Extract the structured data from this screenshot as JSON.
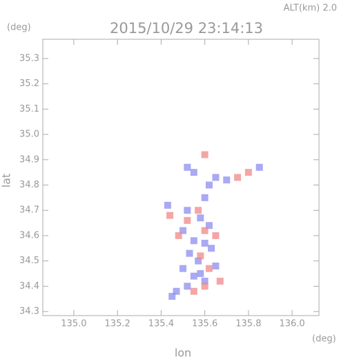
{
  "chart_data": {
    "type": "scatter",
    "title": "2015/10/29 23:14:13",
    "subtitle": "ALT(km) 2.0",
    "y_unit": "(deg)",
    "x_unit": "(deg)",
    "x_label": "lon",
    "y_label": "lat",
    "xlim": [
      134.858,
      136.123
    ],
    "ylim": [
      34.284,
      35.376
    ],
    "xticks": [
      {
        "value": 135,
        "label": "135.0"
      },
      135.2,
      135.4,
      135.6,
      135.8,
      {
        "value": 136,
        "label": "136.0"
      }
    ],
    "yticks": [
      34.3,
      34.4,
      34.5,
      34.6,
      34.7,
      34.8,
      34.9,
      {
        "value": 35,
        "label": "35.0"
      },
      35.1,
      35.2,
      35.3
    ],
    "series": [
      {
        "color": "#8c8cf0",
        "x": [
          135.52,
          135.55,
          135.62,
          135.65,
          135.6,
          135.52,
          135.58,
          135.62,
          135.5,
          135.55,
          135.6,
          135.53,
          135.57,
          135.65,
          135.5,
          135.55,
          135.6,
          135.52,
          135.47,
          135.45,
          135.58,
          135.63,
          135.85,
          135.43,
          135.7
        ],
        "y": [
          34.87,
          34.85,
          34.8,
          34.83,
          34.75,
          34.7,
          34.67,
          34.64,
          34.62,
          34.58,
          34.57,
          34.53,
          34.5,
          34.48,
          34.47,
          34.44,
          34.42,
          34.4,
          34.38,
          34.36,
          34.45,
          34.55,
          34.87,
          34.72,
          34.82
        ]
      },
      {
        "color": "#f08888",
        "x": [
          135.6,
          135.75,
          135.8,
          135.57,
          135.6,
          135.48,
          135.65,
          135.62,
          135.67,
          135.6,
          135.55,
          135.44,
          135.52,
          135.58
        ],
        "y": [
          34.92,
          34.83,
          34.85,
          34.7,
          34.62,
          34.6,
          34.6,
          34.47,
          34.42,
          34.4,
          34.38,
          34.68,
          34.66,
          34.52
        ]
      }
    ]
  }
}
